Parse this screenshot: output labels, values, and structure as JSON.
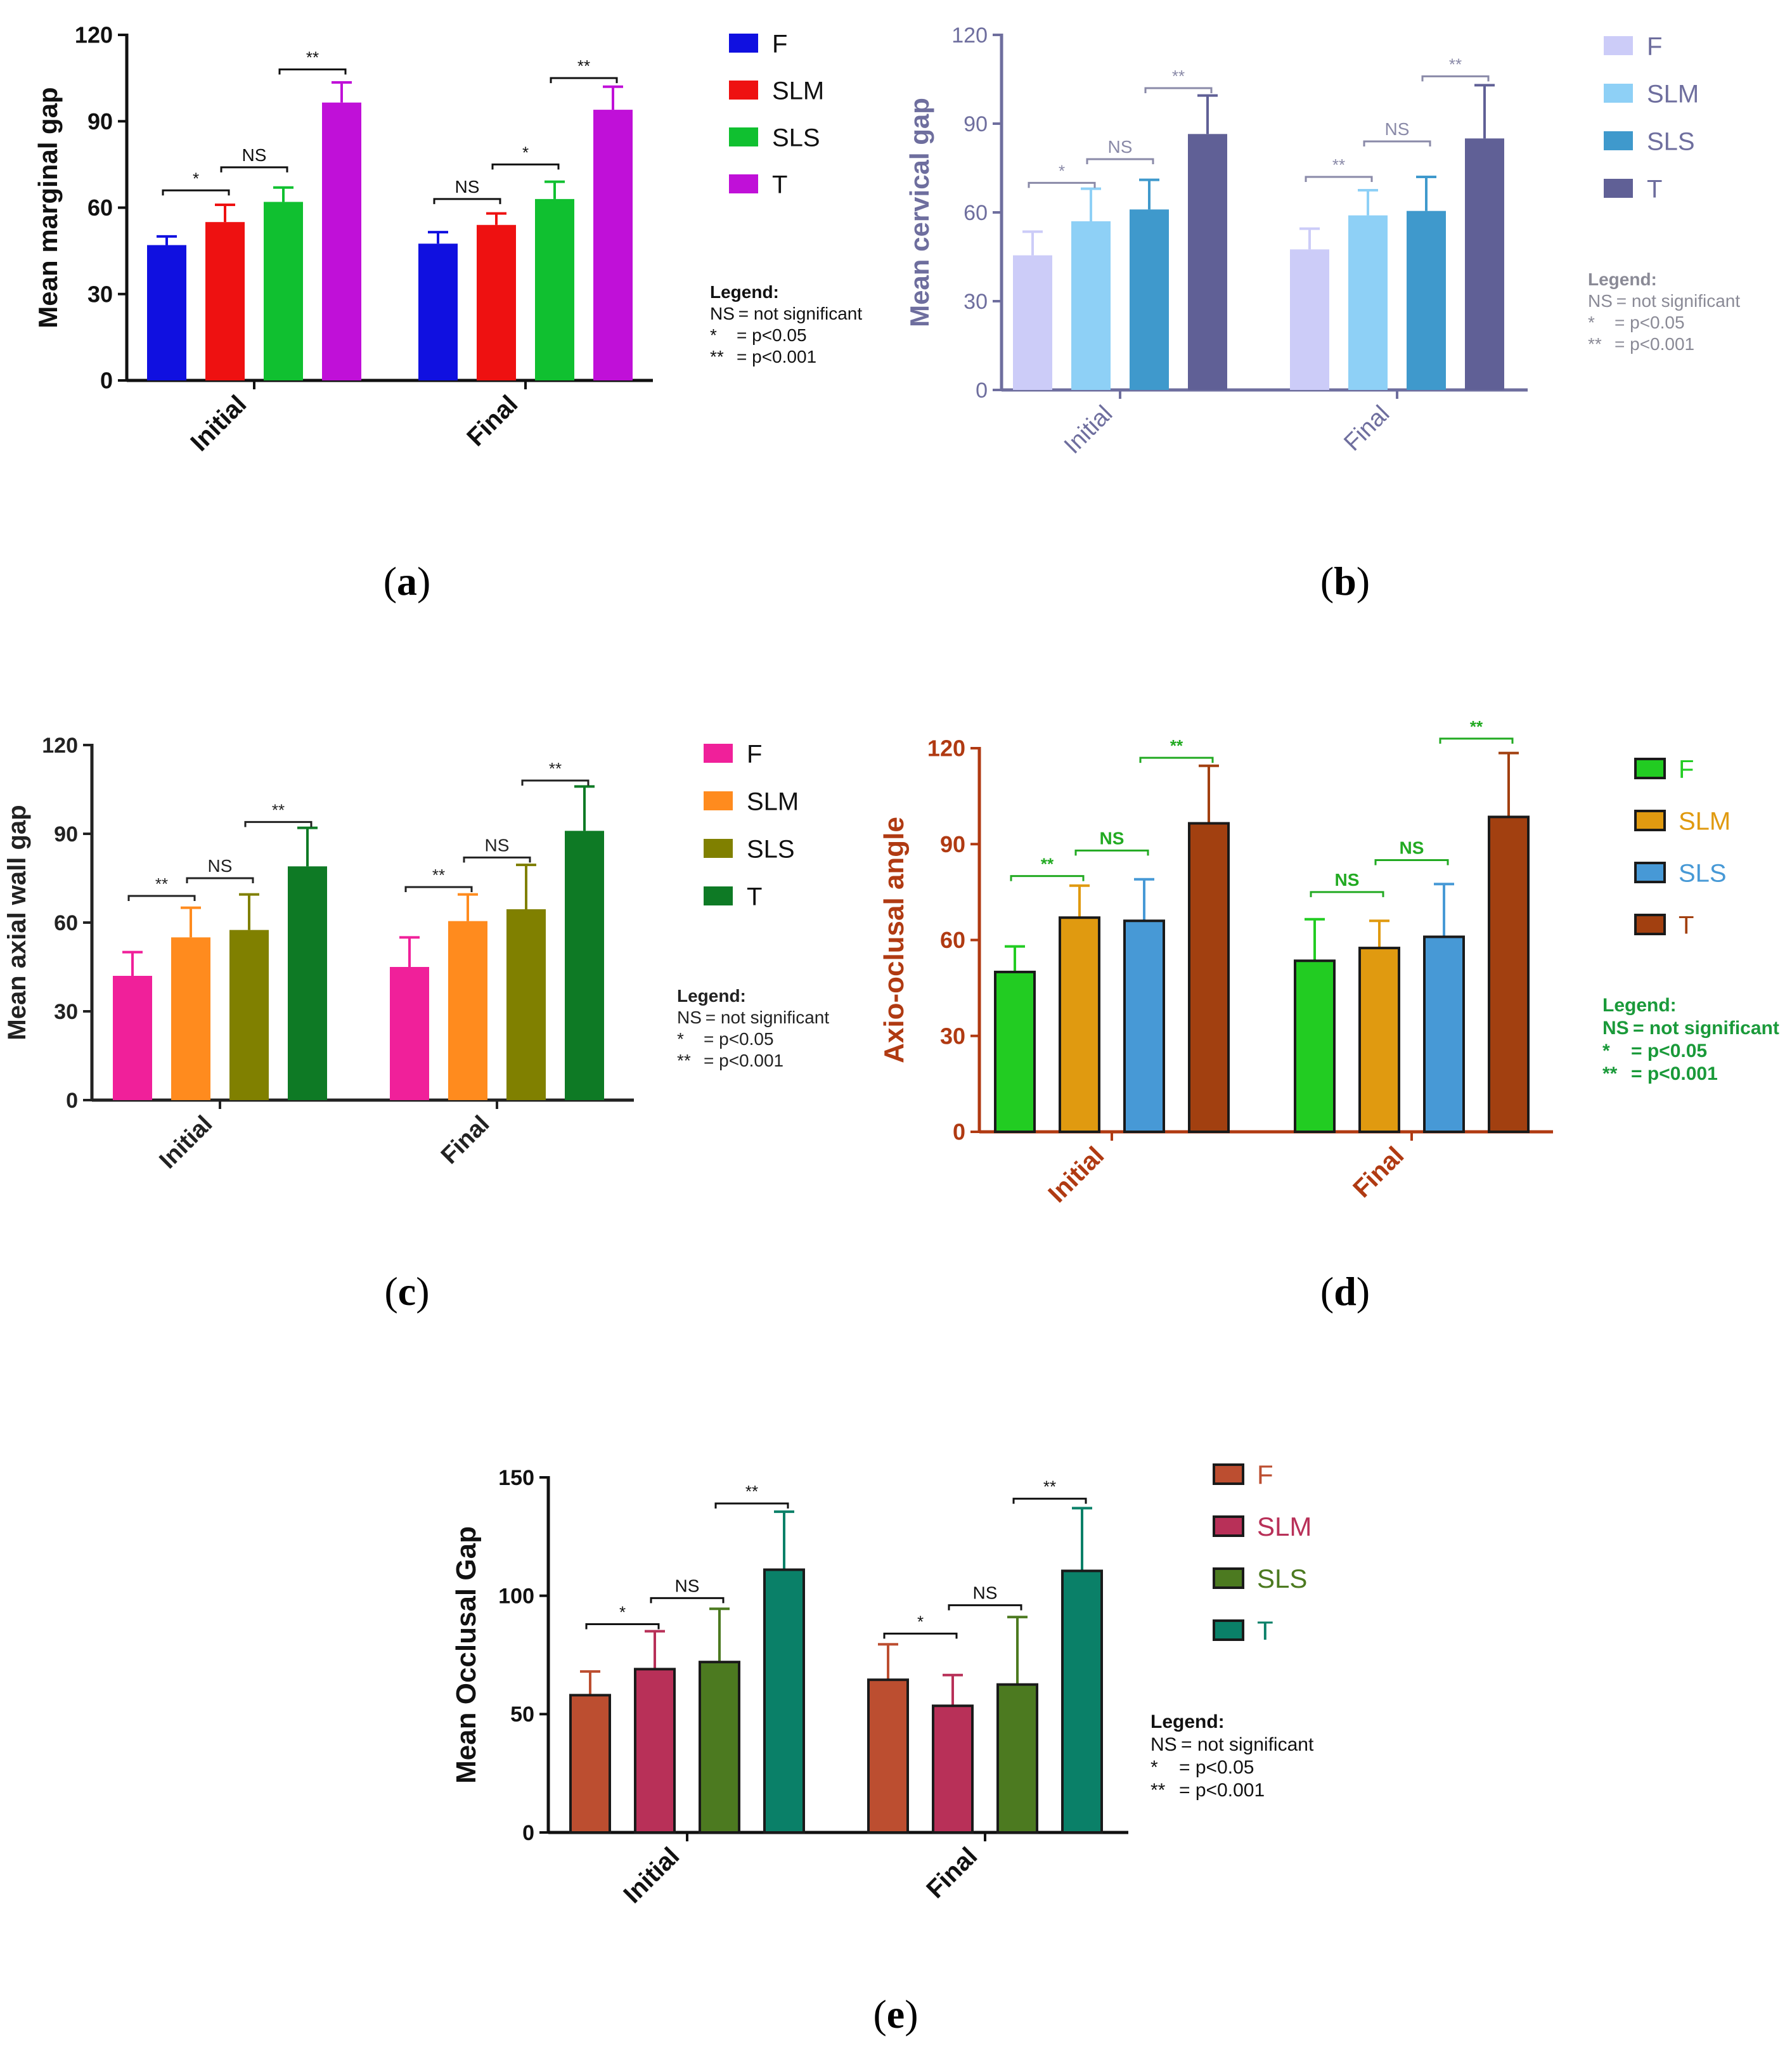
{
  "figure": {
    "panel_labels": [
      {
        "open": "(",
        "letter": "a",
        "close": ")"
      },
      {
        "open": "(",
        "letter": "b",
        "close": ")"
      },
      {
        "open": "(",
        "letter": "c",
        "close": ")"
      },
      {
        "open": "(",
        "letter": "d",
        "close": ")"
      },
      {
        "open": "(",
        "letter": "e",
        "close": ")"
      }
    ]
  },
  "chart_data": [
    {
      "id": "a",
      "type": "bar",
      "title": "",
      "xlabel": "",
      "ylabel": "Mean marginal gap",
      "ylim": [
        0,
        120
      ],
      "yticks": [
        0,
        30,
        60,
        90,
        120
      ],
      "grid": false,
      "legend_position": "right",
      "categories": [
        "Initial",
        "Final"
      ],
      "series": [
        {
          "name": "F",
          "color": "#1010e0",
          "values": [
            47,
            47.5
          ],
          "errors": [
            3,
            4
          ]
        },
        {
          "name": "SLM",
          "color": "#ee1111",
          "values": [
            55,
            54
          ],
          "errors": [
            6,
            4
          ]
        },
        {
          "name": "SLS",
          "color": "#10c030",
          "values": [
            62,
            63
          ],
          "errors": [
            5,
            6
          ]
        },
        {
          "name": "T",
          "color": "#c010d8",
          "values": [
            96.5,
            94
          ],
          "errors": [
            7,
            8
          ]
        }
      ],
      "significance": [
        {
          "category": 0,
          "from": 0,
          "to": 1,
          "y": 66,
          "label": "*"
        },
        {
          "category": 0,
          "from": 1,
          "to": 2,
          "y": 74,
          "label": "NS"
        },
        {
          "category": 0,
          "from": 2,
          "to": 3,
          "y": 108,
          "label": "**"
        },
        {
          "category": 1,
          "from": 0,
          "to": 1,
          "y": 63,
          "label": "NS"
        },
        {
          "category": 1,
          "from": 1,
          "to": 2,
          "y": 75,
          "label": "*"
        },
        {
          "category": 1,
          "from": 2,
          "to": 3,
          "y": 105,
          "label": "**"
        }
      ],
      "legend_note": {
        "heading": "Legend:",
        "lines": [
          {
            "sym": "NS",
            "text": "= not significant"
          },
          {
            "sym": "*",
            "text": "= p<0.05"
          },
          {
            "sym": "**",
            "text": "= p<0.001"
          }
        ]
      },
      "colors": {
        "text": "#111111",
        "axis": "#111111",
        "bracket": "#111111",
        "error": "series"
      }
    },
    {
      "id": "b",
      "type": "bar",
      "title": "",
      "xlabel": "",
      "ylabel": "Mean cervical gap",
      "ylim": [
        0,
        120
      ],
      "yticks": [
        0,
        30,
        60,
        90,
        120
      ],
      "grid": false,
      "legend_position": "right",
      "categories": [
        "Initial",
        "Final"
      ],
      "series": [
        {
          "name": "F",
          "color": "#ccccf8",
          "values": [
            45.5,
            47.5
          ],
          "errors": [
            8,
            7
          ]
        },
        {
          "name": "SLM",
          "color": "#8ed0f6",
          "values": [
            57,
            59
          ],
          "errors": [
            11,
            8.5
          ]
        },
        {
          "name": "SLS",
          "color": "#3f99cc",
          "values": [
            61,
            60.5
          ],
          "errors": [
            10,
            11.5
          ]
        },
        {
          "name": "T",
          "color": "#606096",
          "values": [
            86.5,
            85
          ],
          "errors": [
            13,
            18
          ]
        }
      ],
      "significance": [
        {
          "category": 0,
          "from": 0,
          "to": 1,
          "y": 70,
          "label": "*"
        },
        {
          "category": 0,
          "from": 1,
          "to": 2,
          "y": 78,
          "label": "NS"
        },
        {
          "category": 0,
          "from": 2,
          "to": 3,
          "y": 102,
          "label": "**"
        },
        {
          "category": 1,
          "from": 0,
          "to": 1,
          "y": 72,
          "label": "**"
        },
        {
          "category": 1,
          "from": 1,
          "to": 2,
          "y": 84,
          "label": "NS"
        },
        {
          "category": 1,
          "from": 2,
          "to": 3,
          "y": 106,
          "label": "**"
        }
      ],
      "legend_note": {
        "heading": "Legend:",
        "lines": [
          {
            "sym": "NS",
            "text": "= not significant"
          },
          {
            "sym": "*",
            "text": "= p<0.05"
          },
          {
            "sym": "**",
            "text": "= p<0.001"
          }
        ]
      },
      "colors": {
        "text": "#6e6e9e",
        "axis": "#6e6e9e",
        "bracket": "#8a8aa8",
        "error": "series",
        "note": "#8a8a96"
      }
    },
    {
      "id": "c",
      "type": "bar",
      "title": "",
      "xlabel": "",
      "ylabel": "Mean axial wall gap",
      "ylim": [
        0,
        120
      ],
      "yticks": [
        0,
        30,
        60,
        90,
        120
      ],
      "grid": false,
      "legend_position": "right",
      "categories": [
        "Initial",
        "Final"
      ],
      "series": [
        {
          "name": "F",
          "color": "#f0209a",
          "values": [
            42,
            45
          ],
          "errors": [
            8,
            10
          ]
        },
        {
          "name": "SLM",
          "color": "#ff8b1e",
          "values": [
            55,
            60.5
          ],
          "errors": [
            10,
            9
          ]
        },
        {
          "name": "SLS",
          "color": "#808000",
          "values": [
            57.5,
            64.5
          ],
          "errors": [
            12,
            15
          ]
        },
        {
          "name": "T",
          "color": "#0e7a25",
          "values": [
            79,
            91
          ],
          "errors": [
            13,
            15
          ]
        }
      ],
      "significance": [
        {
          "category": 0,
          "from": 0,
          "to": 1,
          "y": 69,
          "label": "**"
        },
        {
          "category": 0,
          "from": 1,
          "to": 2,
          "y": 75,
          "label": "NS"
        },
        {
          "category": 0,
          "from": 2,
          "to": 3,
          "y": 94,
          "label": "**"
        },
        {
          "category": 1,
          "from": 0,
          "to": 1,
          "y": 72,
          "label": "**"
        },
        {
          "category": 1,
          "from": 1,
          "to": 2,
          "y": 82,
          "label": "NS"
        },
        {
          "category": 1,
          "from": 2,
          "to": 3,
          "y": 108,
          "label": "**"
        }
      ],
      "legend_note": {
        "heading": "Legend:",
        "lines": [
          {
            "sym": "NS",
            "text": "= not significant"
          },
          {
            "sym": "*",
            "text": "= p<0.05"
          },
          {
            "sym": "**",
            "text": "= p<0.001"
          }
        ]
      },
      "colors": {
        "text": "#222222",
        "axis": "#222222",
        "bracket": "#222222",
        "error": "series"
      }
    },
    {
      "id": "d",
      "type": "bar",
      "title": "",
      "xlabel": "",
      "ylabel": "Axio-oclusal angle",
      "ylim": [
        0,
        120
      ],
      "yticks": [
        0,
        30,
        60,
        90,
        120
      ],
      "grid": false,
      "legend_position": "right",
      "categories": [
        "Initial",
        "Final"
      ],
      "series": [
        {
          "name": "F",
          "color": "#22cc22",
          "values": [
            50,
            53.5
          ],
          "errors": [
            8,
            13
          ]
        },
        {
          "name": "SLM",
          "color": "#e09a10",
          "values": [
            67,
            57.5
          ],
          "errors": [
            10,
            8.5
          ]
        },
        {
          "name": "SLS",
          "color": "#4799d6",
          "values": [
            66,
            61
          ],
          "errors": [
            13,
            16.5
          ]
        },
        {
          "name": "T",
          "color": "#a24010",
          "values": [
            96.5,
            98.5
          ],
          "errors": [
            18,
            20
          ]
        }
      ],
      "significance": [
        {
          "category": 0,
          "from": 0,
          "to": 1,
          "y": 80,
          "label": "**"
        },
        {
          "category": 0,
          "from": 1,
          "to": 2,
          "y": 88,
          "label": "NS"
        },
        {
          "category": 0,
          "from": 2,
          "to": 3,
          "y": 117,
          "label": "**"
        },
        {
          "category": 1,
          "from": 0,
          "to": 1,
          "y": 75,
          "label": "NS"
        },
        {
          "category": 1,
          "from": 1,
          "to": 2,
          "y": 85,
          "label": "NS"
        },
        {
          "category": 1,
          "from": 2,
          "to": 3,
          "y": 123,
          "label": "**"
        }
      ],
      "legend_note": {
        "heading": "Legend:",
        "lines": [
          {
            "sym": "NS",
            "text": "= not significant"
          },
          {
            "sym": "*",
            "text": "= p<0.05"
          },
          {
            "sym": "**",
            "text": "= p<0.001"
          }
        ]
      },
      "colors": {
        "text": "#b03a12",
        "axis": "#b03a12",
        "bracket": "#22aa22",
        "error": "series",
        "note": "#1a9a3a"
      }
    },
    {
      "id": "e",
      "type": "bar",
      "title": "",
      "xlabel": "",
      "ylabel": "Mean Occlusal Gap",
      "ylim": [
        0,
        150
      ],
      "yticks": [
        0,
        50,
        100,
        150
      ],
      "grid": false,
      "legend_position": "right",
      "categories": [
        "Initial",
        "Final"
      ],
      "series": [
        {
          "name": "F",
          "color": "#bc4e30",
          "values": [
            58,
            64.5
          ],
          "errors": [
            10,
            15
          ]
        },
        {
          "name": "SLM",
          "color": "#b83058",
          "values": [
            69,
            53.5
          ],
          "errors": [
            16,
            13
          ]
        },
        {
          "name": "SLS",
          "color": "#4c7a20",
          "values": [
            72,
            62.5
          ],
          "errors": [
            22.5,
            28.5
          ]
        },
        {
          "name": "T",
          "color": "#0a8068",
          "values": [
            111,
            110.5
          ],
          "errors": [
            24.5,
            26.5
          ]
        }
      ],
      "significance": [
        {
          "category": 0,
          "from": 0,
          "to": 1,
          "y": 88,
          "label": "*"
        },
        {
          "category": 0,
          "from": 1,
          "to": 2,
          "y": 99,
          "label": "NS"
        },
        {
          "category": 0,
          "from": 2,
          "to": 3,
          "y": 139,
          "label": "**"
        },
        {
          "category": 1,
          "from": 0,
          "to": 1,
          "y": 84,
          "label": "*"
        },
        {
          "category": 1,
          "from": 1,
          "to": 2,
          "y": 96,
          "label": "NS"
        },
        {
          "category": 1,
          "from": 2,
          "to": 3,
          "y": 141,
          "label": "**"
        }
      ],
      "legend_note": {
        "heading": "Legend:",
        "lines": [
          {
            "sym": "NS",
            "text": "= not significant"
          },
          {
            "sym": "*",
            "text": "= p<0.05"
          },
          {
            "sym": "**",
            "text": "= p<0.001"
          }
        ]
      },
      "colors": {
        "text": "#111111",
        "axis": "#111111",
        "bracket": "#111111",
        "error": "series"
      }
    }
  ]
}
